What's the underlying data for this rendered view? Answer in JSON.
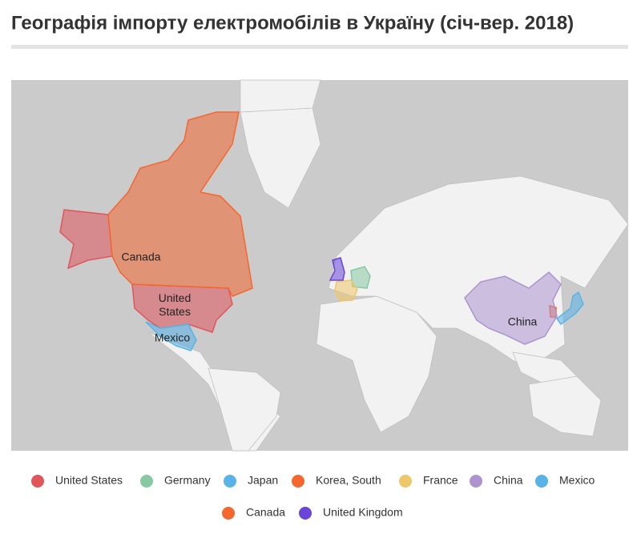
{
  "header": {
    "title": "Географія імпорту електромобілів в Україну (січ-вер. 2018)"
  },
  "map": {
    "countries": [
      {
        "name": "United States",
        "color": "#e0565b"
      },
      {
        "name": "Germany",
        "color": "#86c9a3"
      },
      {
        "name": "Japan",
        "color": "#58b3e8"
      },
      {
        "name": "Korea, South",
        "color": "#f4672f"
      },
      {
        "name": "France",
        "color": "#eec76a"
      },
      {
        "name": "China",
        "color": "#ad94cf"
      },
      {
        "name": "Mexico",
        "color": "#58b3e8"
      },
      {
        "name": "Canada",
        "color": "#f4672f"
      },
      {
        "name": "United Kingdom",
        "color": "#6a45d8"
      }
    ]
  }
}
